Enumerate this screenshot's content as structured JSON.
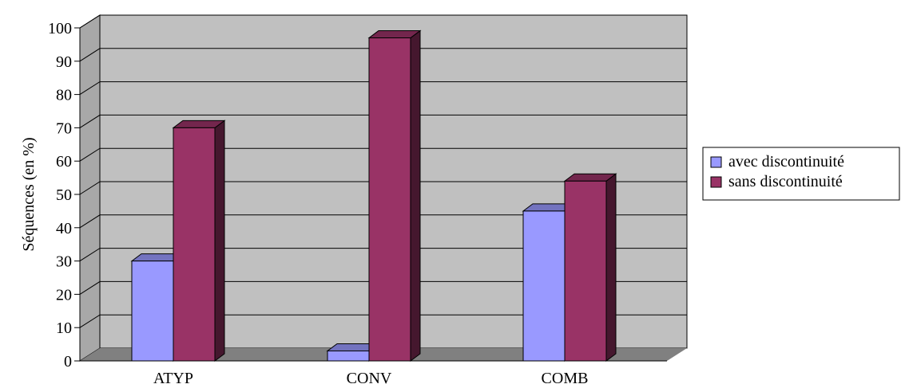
{
  "chart_data": {
    "type": "bar",
    "categories": [
      "ATYP",
      "CONV",
      "COMB"
    ],
    "series": [
      {
        "name": "avec discontinuité",
        "values": [
          30,
          3,
          45
        ],
        "color": "#9999FF"
      },
      {
        "name": "sans discontinuité",
        "values": [
          70,
          97,
          54
        ],
        "color": "#993366"
      }
    ],
    "ylabel": "Séquences (en %)",
    "xlabel": "",
    "title": "",
    "ylim": [
      0,
      100
    ],
    "yticks": [
      0,
      10,
      20,
      30,
      40,
      50,
      60,
      70,
      80,
      90,
      100
    ],
    "grid": true,
    "legend": "right",
    "style": "3d-bar",
    "wall_color": "#C0C0C0",
    "floor_color": "#808080"
  }
}
